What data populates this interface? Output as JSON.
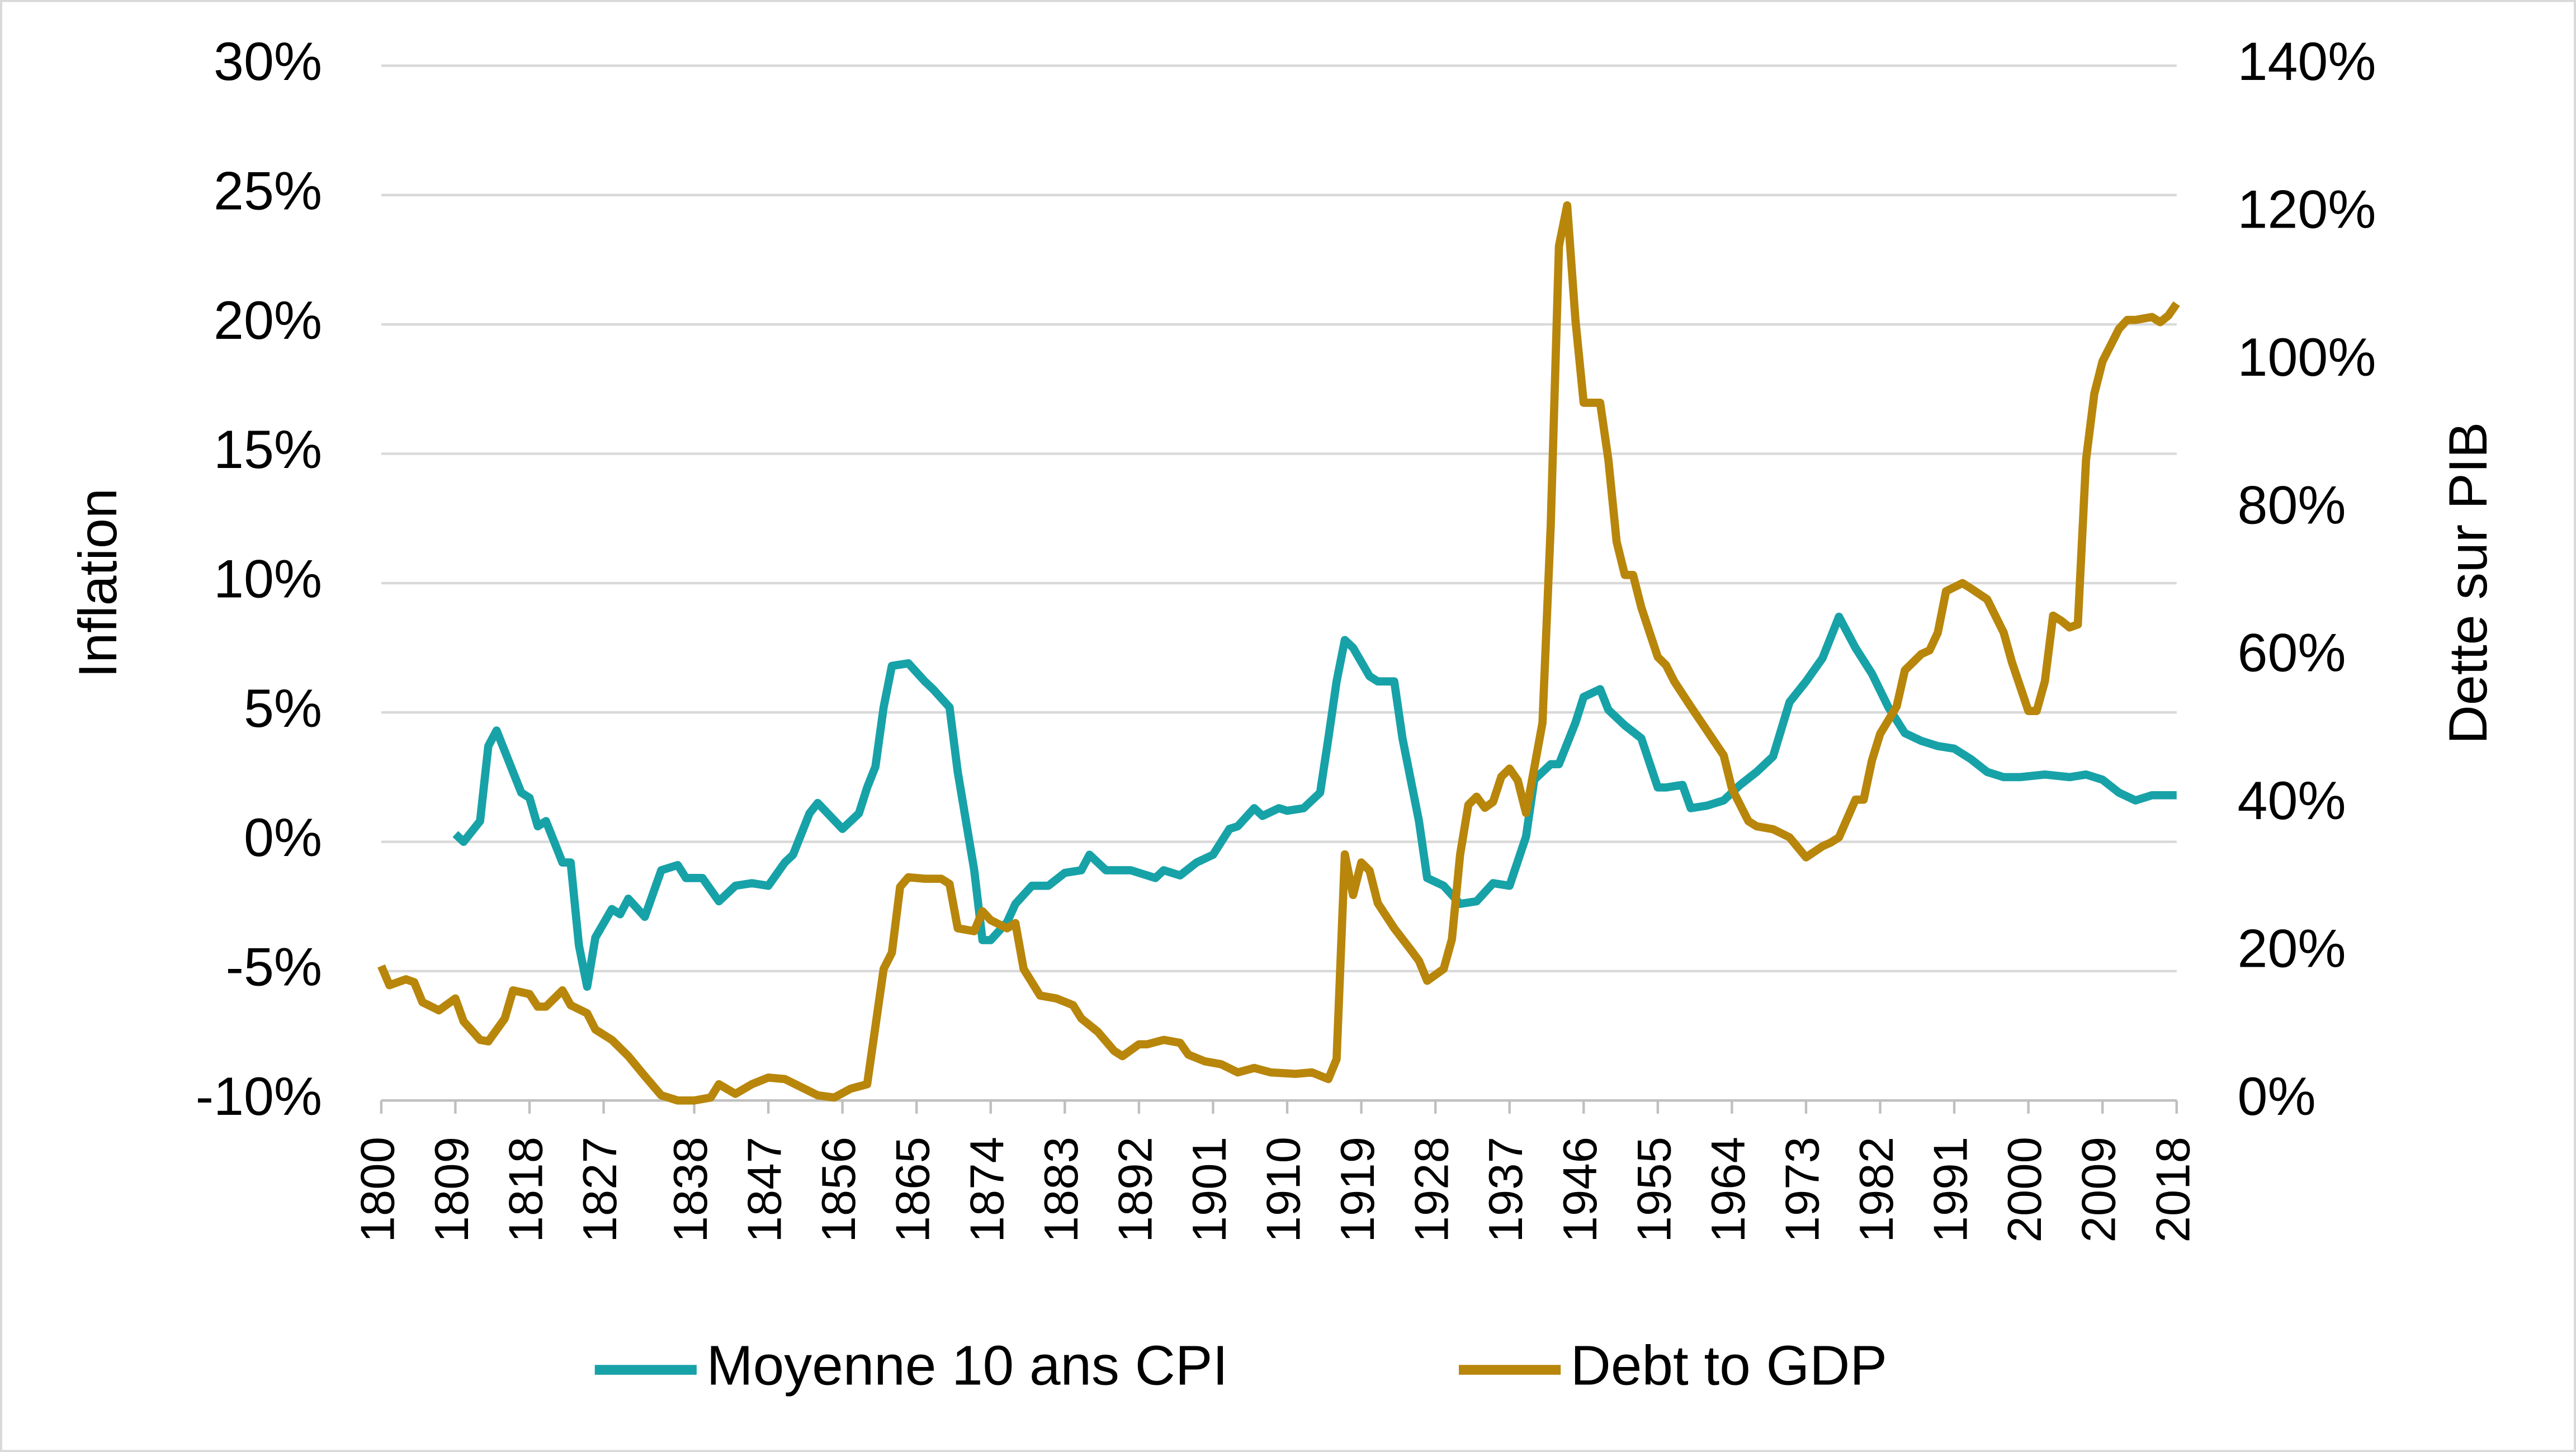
{
  "chart_data": {
    "type": "line",
    "ylabel": "Inflation",
    "y2label": "Dette sur PIB",
    "xlim": [
      1800,
      2020
    ],
    "xticks": [
      1800,
      1809,
      1818,
      1827,
      1838,
      1847,
      1856,
      1865,
      1874,
      1883,
      1892,
      1901,
      1910,
      1919,
      1928,
      1937,
      1946,
      1955,
      1964,
      1973,
      1982,
      1991,
      2000,
      2009,
      2018
    ],
    "ylim": [
      -10,
      30
    ],
    "yticks": [
      {
        "value": -10,
        "label": "-10%"
      },
      {
        "value": -5,
        "label": "-5%"
      },
      {
        "value": 0,
        "label": "0%"
      },
      {
        "value": 5,
        "label": "5%"
      },
      {
        "value": 10,
        "label": "10%"
      },
      {
        "value": 15,
        "label": "15%"
      },
      {
        "value": 20,
        "label": "20%"
      },
      {
        "value": 25,
        "label": "25%"
      },
      {
        "value": 30,
        "label": "30%"
      }
    ],
    "y2lim": [
      0,
      140
    ],
    "y2ticks": [
      {
        "value": 0,
        "label": "0%"
      },
      {
        "value": 20,
        "label": "20%"
      },
      {
        "value": 40,
        "label": "40%"
      },
      {
        "value": 60,
        "label": "60%"
      },
      {
        "value": 80,
        "label": "80%"
      },
      {
        "value": 100,
        "label": "100%"
      },
      {
        "value": 120,
        "label": "120%"
      },
      {
        "value": 140,
        "label": "140%"
      }
    ],
    "grid": true,
    "legend": "bottom",
    "series": [
      {
        "name": "Moyenne 10 ans CPI",
        "color": "#17a2a8",
        "axis": "y",
        "x": [
          1809,
          1810,
          1812,
          1813,
          1814,
          1817,
          1818,
          1819,
          1820,
          1822,
          1823,
          1824,
          1825,
          1826,
          1828,
          1829,
          1830,
          1832,
          1834,
          1836,
          1837,
          1839,
          1841,
          1843,
          1845,
          1847,
          1849,
          1850,
          1852,
          1853,
          1856,
          1858,
          1859,
          1860,
          1861,
          1862,
          1864,
          1866,
          1867,
          1869,
          1870,
          1872,
          1873,
          1874,
          1876,
          1877,
          1879,
          1881,
          1883,
          1885,
          1886,
          1888,
          1891,
          1894,
          1895,
          1897,
          1899,
          1901,
          1903,
          1904,
          1906,
          1907,
          1909,
          1910,
          1912,
          1914,
          1915,
          1916,
          1917,
          1918,
          1920,
          1921,
          1923,
          1924,
          1926,
          1927,
          1929,
          1931,
          1933,
          1935,
          1937,
          1939,
          1940,
          1942,
          1943,
          1945,
          1946,
          1948,
          1949,
          1951,
          1953,
          1955,
          1956,
          1958,
          1959,
          1961,
          1963,
          1965,
          1967,
          1969,
          1971,
          1973,
          1975,
          1977,
          1979,
          1981,
          1983,
          1985,
          1987,
          1989,
          1991,
          1993,
          1995,
          1997,
          1999,
          2002,
          2005,
          2007,
          2009,
          2011,
          2013,
          2015,
          2016,
          2018
        ],
        "values": [
          0.3,
          0,
          0.8,
          3.7,
          4.3,
          1.9,
          1.7,
          0.6,
          0.8,
          -0.8,
          -0.8,
          -4,
          -5.6,
          -3.7,
          -2.6,
          -2.8,
          -2.2,
          -2.9,
          -1.1,
          -0.9,
          -1.4,
          -1.4,
          -2.3,
          -1.7,
          -1.6,
          -1.7,
          -0.8,
          -0.5,
          1.1,
          1.5,
          0.5,
          1.1,
          2.1,
          2.9,
          5.2,
          6.8,
          6.9,
          6.2,
          5.9,
          5.2,
          2.7,
          -1.1,
          -3.8,
          -3.8,
          -3.1,
          -2.4,
          -1.7,
          -1.7,
          -1.2,
          -1.1,
          -0.5,
          -1.1,
          -1.1,
          -1.4,
          -1.1,
          -1.3,
          -0.8,
          -0.5,
          0.5,
          0.6,
          1.3,
          1,
          1.3,
          1.2,
          1.3,
          1.9,
          4,
          6.2,
          7.8,
          7.5,
          6.4,
          6.2,
          6.2,
          4,
          0.8,
          -1.4,
          -1.7,
          -2.4,
          -2.3,
          -1.6,
          -1.7,
          0.2,
          2.4,
          3,
          3,
          4.6,
          5.6,
          5.9,
          5.1,
          4.5,
          4,
          2.1,
          2.1,
          2.2,
          1.3,
          1.4,
          1.6,
          2.2,
          2.7,
          3.3,
          5.4,
          6.2,
          7.1,
          8.7,
          7.5,
          6.5,
          5.2,
          4.2,
          3.9,
          3.7,
          3.6,
          3.2,
          2.7,
          2.5,
          2.5,
          2.6,
          2.5,
          2.6,
          2.4,
          1.9,
          1.6,
          1.8,
          1.8,
          1.8
        ]
      },
      {
        "name": "Debt to GDP",
        "color": "#b8860b",
        "axis": "y2",
        "x": [
          1800,
          1801,
          1803,
          1804,
          1805,
          1807,
          1809,
          1810,
          1812,
          1813,
          1815,
          1816,
          1818,
          1819,
          1820,
          1822,
          1823,
          1825,
          1826,
          1828,
          1830,
          1832,
          1834,
          1836,
          1838,
          1840,
          1841,
          1843,
          1845,
          1847,
          1849,
          1851,
          1853,
          1855,
          1857,
          1859,
          1860,
          1861,
          1862,
          1863,
          1864,
          1866,
          1868,
          1869,
          1870,
          1872,
          1873,
          1874,
          1876,
          1877,
          1878,
          1880,
          1882,
          1884,
          1885,
          1887,
          1889,
          1890,
          1892,
          1893,
          1895,
          1897,
          1898,
          1900,
          1902,
          1904,
          1906,
          1908,
          1911,
          1913,
          1915,
          1916,
          1917,
          1918,
          1919,
          1920,
          1921,
          1923,
          1925,
          1926,
          1927,
          1929,
          1930,
          1931,
          1932,
          1933,
          1934,
          1935,
          1936,
          1937,
          1938,
          1939,
          1941,
          1942,
          1943,
          1944,
          1945,
          1946,
          1948,
          1949,
          1950,
          1951,
          1952,
          1953,
          1955,
          1956,
          1957,
          1959,
          1961,
          1963,
          1964,
          1966,
          1967,
          1969,
          1971,
          1973,
          1975,
          1976,
          1977,
          1979,
          1980,
          1981,
          1982,
          1984,
          1985,
          1987,
          1988,
          1989,
          1990,
          1992,
          1993,
          1995,
          1997,
          1998,
          2000,
          2001,
          2002,
          2003,
          2004,
          2005,
          2006,
          2007,
          2008,
          2009,
          2011,
          2012,
          2013,
          2015,
          2016,
          2017,
          2018
        ],
        "values": [
          18.2,
          15.6,
          16.4,
          16,
          13.3,
          12.2,
          13.8,
          10.7,
          8.2,
          8,
          11.1,
          14.9,
          14.4,
          12.7,
          12.7,
          14.9,
          12.9,
          11.8,
          9.6,
          8.2,
          6,
          3.3,
          0.7,
          0,
          0,
          0.4,
          2.2,
          0.9,
          2.2,
          3.1,
          2.9,
          1.8,
          0.7,
          0.4,
          1.6,
          2.2,
          10,
          17.8,
          20,
          28.9,
          30.2,
          30,
          30,
          29.3,
          23.3,
          22.9,
          25.6,
          24.4,
          23.3,
          24,
          17.8,
          14.2,
          13.8,
          12.9,
          11.1,
          9.3,
          6.7,
          6,
          7.6,
          7.6,
          8.2,
          7.8,
          6.2,
          5.3,
          4.9,
          3.8,
          4.4,
          3.8,
          3.6,
          3.8,
          2.9,
          5.6,
          33.3,
          27.8,
          32.2,
          31.1,
          26.7,
          23.3,
          20.4,
          18.9,
          16.2,
          17.8,
          21.8,
          33.3,
          40,
          41.1,
          39.6,
          40.4,
          43.8,
          44.9,
          43.3,
          38.9,
          51.1,
          77.8,
          115.6,
          121.1,
          105.6,
          94.4,
          94.4,
          86.7,
          75.6,
          71.1,
          71.1,
          66.7,
          60,
          58.9,
          56.7,
          53.3,
          50,
          46.7,
          42.2,
          37.8,
          37.1,
          36.7,
          35.6,
          32.9,
          34.4,
          34.9,
          35.6,
          40.7,
          40.7,
          46,
          49.6,
          53.3,
          58.2,
          60.4,
          60.9,
          63.3,
          68.9,
          70,
          69.3,
          67.8,
          63.3,
          59.3,
          52.7,
          52.7,
          56.7,
          65.6,
          64.9,
          64,
          64.4,
          86.7,
          95.6,
          100,
          104.4,
          105.6,
          105.6,
          106,
          105.3,
          106.2,
          107.8
        ]
      }
    ]
  }
}
